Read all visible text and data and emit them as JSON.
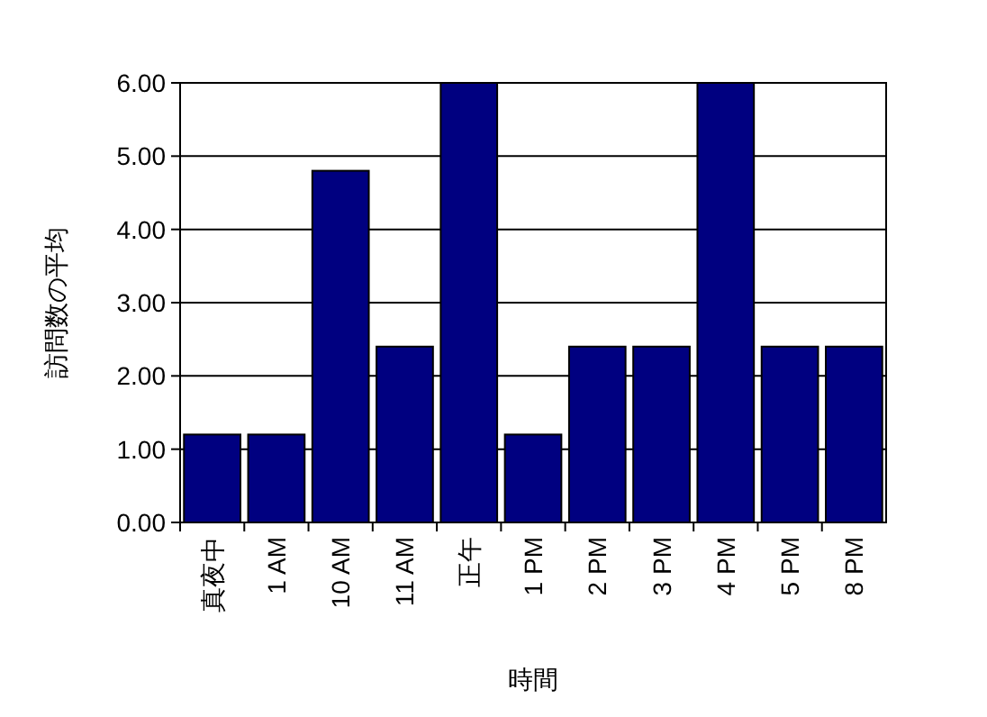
{
  "chart_data": {
    "type": "bar",
    "xlabel": "時間",
    "ylabel": "訪問数の平均",
    "categories": [
      "真夜中",
      "1 AM",
      "10 AM",
      "11 AM",
      "正午",
      "1 PM",
      "2 PM",
      "3 PM",
      "4 PM",
      "5 PM",
      "8 PM"
    ],
    "values": [
      1.2,
      1.2,
      4.8,
      2.4,
      6.0,
      1.2,
      2.4,
      2.4,
      6.0,
      2.4,
      2.4
    ],
    "color": "#000080",
    "ylim": [
      0,
      6
    ],
    "yticks": [
      {
        "value": 0,
        "label": "0.00"
      },
      {
        "value": 1,
        "label": "1.00"
      },
      {
        "value": 2,
        "label": "2.00"
      },
      {
        "value": 3,
        "label": "3.00"
      },
      {
        "value": 4,
        "label": "4.00"
      },
      {
        "value": 5,
        "label": "5.00"
      },
      {
        "value": 6,
        "label": "6.00"
      }
    ],
    "grid": "y"
  }
}
